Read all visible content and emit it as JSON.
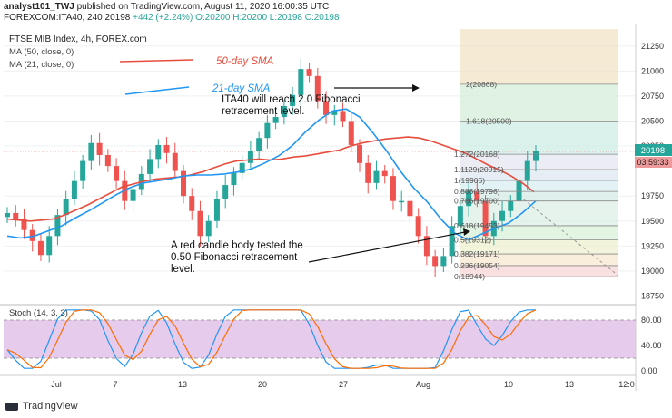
{
  "header": {
    "line1_author": "analyst101_TWJ",
    "line1_rest": "published on TradingView.com, August 11, 2020 16:00:35 UTC",
    "symbol": "FOREXCOM:ITA40, 240",
    "last": "20198",
    "change": "+442 (+2.24%)",
    "ohlc": "O:20200 H:20200 L:20198 C:20198"
  },
  "legend": {
    "title": "FTSE MIB Index, 4h, FOREX.com",
    "ma50": "MA (50, close, 0)",
    "ma21": "MA (21, close, 0)"
  },
  "annotations": {
    "sma50": "50-day SMA",
    "sma21": "21-day SMA",
    "note1_a": "ITA40 will reach 2.0 Fibonacci",
    "note1_b": "retracement level.",
    "note2_a": "A red candle body tested the",
    "note2_b": "0.50 Fibonacci retracement",
    "note2_c": "level."
  },
  "price_tag": {
    "value": "20198",
    "countdown": "03:59:33"
  },
  "stoch": {
    "label": "Stoch (14, 3, 3)"
  },
  "footer": {
    "brand": "TradingView"
  },
  "colors": {
    "up": "#26a69a",
    "down": "#ef5350",
    "ma50": "#e84c3d",
    "ma21": "#2196f3",
    "stoch_k": "#2196f3",
    "stoch_d": "#ff6d00",
    "stoch_band": "#e1bee7"
  },
  "chart_data": {
    "type": "candlestick",
    "title": "FTSE MIB Index, 4h, FOREX.com",
    "y_ticks": [
      21250,
      21000,
      20750,
      20500,
      20250,
      19750,
      19500,
      19250,
      19000,
      18750
    ],
    "ylim": [
      18700,
      21420
    ],
    "x_ticks": [
      "Jul",
      "7",
      "13",
      "20",
      "27",
      "Aug",
      "10",
      "13",
      "12:0"
    ],
    "fibonacci": [
      {
        "label": "0(18944)",
        "value": 18944
      },
      {
        "label": "0.236(19054)",
        "value": 19054
      },
      {
        "label": "0.382(19171)",
        "value": 19171
      },
      {
        "label": "0.5(19312)",
        "value": 19312
      },
      {
        "label": "0.618(19453)",
        "value": 19453
      },
      {
        "label": "0.786(19700)",
        "value": 19700
      },
      {
        "label": "0.886(19796)",
        "value": 19796
      },
      {
        "label": "1(19906)",
        "value": 19906
      },
      {
        "label": "1.1129(20015)",
        "value": 20015
      },
      {
        "label": "1.272(20168)",
        "value": 20168
      },
      {
        "label": "1.618(20500)",
        "value": 20500
      },
      {
        "label": "2(20868)",
        "value": 20868
      }
    ],
    "close_series": [
      19580,
      19520,
      19410,
      19300,
      19160,
      19350,
      19560,
      19720,
      19900,
      20100,
      20280,
      20160,
      20050,
      19900,
      19700,
      19820,
      19970,
      20120,
      20260,
      20180,
      20000,
      19750,
      19600,
      19350,
      19500,
      19720,
      19860,
      19980,
      20080,
      20200,
      20330,
      20480,
      20540,
      20650,
      20760,
      21020,
      20950,
      20700,
      20560,
      20600,
      20500,
      20260,
      20080,
      19880,
      20000,
      19950,
      19700,
      19700,
      19550,
      19350,
      19150,
      19050,
      19150,
      19450,
      19650,
      19800,
      19700,
      19350,
      19500,
      19600,
      19700,
      19900,
      20100,
      20198
    ],
    "ma50_series": [
      19520,
      19510,
      19500,
      19510,
      19520,
      19560,
      19610,
      19660,
      19720,
      19780,
      19840,
      19870,
      19900,
      19920,
      19930,
      19940,
      19960,
      19990,
      20030,
      20070,
      20100,
      20110,
      20120,
      20110,
      20120,
      20140,
      20150,
      20170,
      20190,
      20210,
      20250,
      20280,
      20300,
      20320,
      20330,
      20340,
      20330,
      20300,
      20260,
      20220,
      20180,
      20120,
      20060,
      20010,
      19950,
      19880,
      19790
    ],
    "ma21_series": [
      19350,
      19330,
      19350,
      19400,
      19450,
      19530,
      19600,
      19680,
      19760,
      19830,
      19880,
      19900,
      19920,
      19950,
      19960,
      19960,
      19970,
      19990,
      20020,
      20080,
      20150,
      20250,
      20390,
      20510,
      20600,
      20620,
      20540,
      20380,
      20200,
      20000,
      19830,
      19690,
      19520,
      19380,
      19310,
      19370,
      19430,
      19480,
      19580,
      19700
    ],
    "stoch_ylim": [
      0,
      100
    ],
    "stoch_ticks": [
      80,
      40,
      0
    ],
    "stoch_bands": [
      80,
      20
    ]
  }
}
